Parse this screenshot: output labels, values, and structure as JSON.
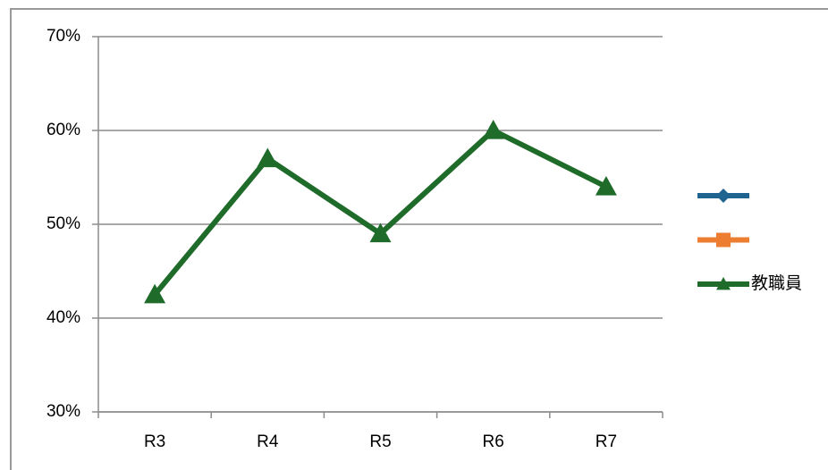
{
  "chart_data": {
    "type": "line",
    "categories": [
      "R3",
      "R4",
      "R5",
      "R6",
      "R7"
    ],
    "series": [
      {
        "name": null,
        "color": "#1f6391",
        "marker": "diamond",
        "values": [
          null,
          null,
          null,
          null,
          null
        ]
      },
      {
        "name": null,
        "color": "#ed7d31",
        "marker": "square",
        "values": [
          null,
          null,
          null,
          null,
          null
        ]
      },
      {
        "name": "教職員",
        "color": "#1e6b2a",
        "marker": "triangle",
        "values": [
          42.5,
          57,
          49,
          60,
          54
        ]
      }
    ],
    "ylim": [
      30,
      70
    ],
    "yticks": [
      {
        "value": 30,
        "label": "30%"
      },
      {
        "value": 40,
        "label": "40%"
      },
      {
        "value": 50,
        "label": "50%"
      },
      {
        "value": 60,
        "label": "60%"
      },
      {
        "value": 70,
        "label": "70%"
      }
    ],
    "grid": true,
    "legend": "right"
  }
}
